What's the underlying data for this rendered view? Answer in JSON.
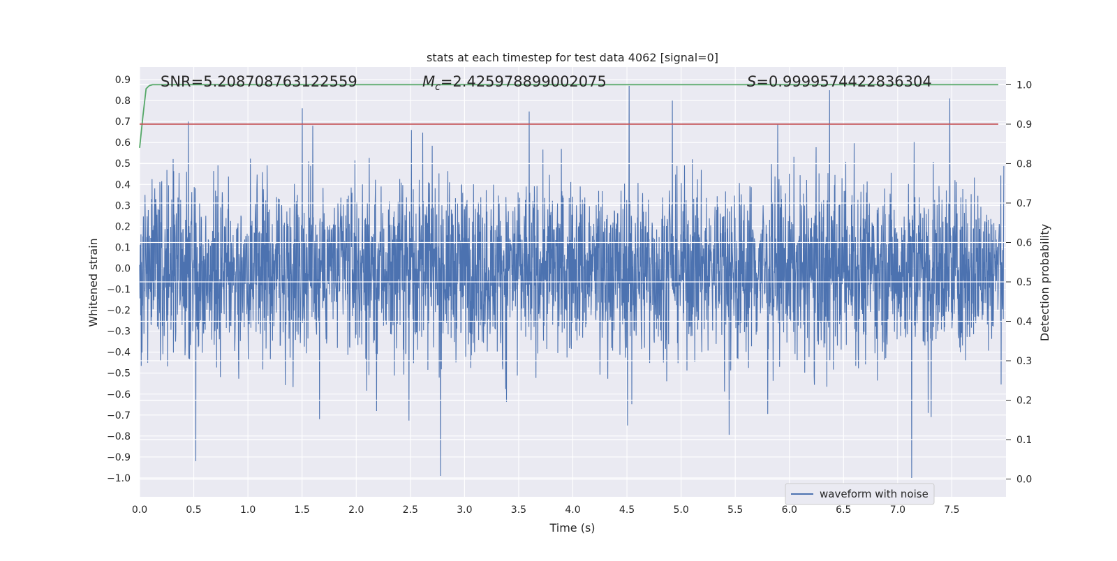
{
  "chart_data": {
    "type": "line",
    "title": "stats at each timestep for test data 4062 [signal=0]",
    "xlabel": "Time (s)",
    "ylabel": "Whitened strain",
    "y2label": "Detection probability",
    "xlim": [
      0.0,
      8.0
    ],
    "ylim": [
      -1.09,
      0.96
    ],
    "y2lim": [
      -0.045,
      1.045
    ],
    "xticks": [
      "0.0",
      "0.5",
      "1.0",
      "1.5",
      "2.0",
      "2.5",
      "3.0",
      "3.5",
      "4.0",
      "4.5",
      "5.0",
      "5.5",
      "6.0",
      "6.5",
      "7.0",
      "7.5"
    ],
    "yticks": [
      "0.9",
      "0.8",
      "0.7",
      "0.6",
      "0.5",
      "0.4",
      "0.3",
      "0.2",
      "0.1",
      "0.0",
      "−0.1",
      "−0.2",
      "−0.3",
      "−0.4",
      "−0.5",
      "−0.6",
      "−0.7",
      "−0.8",
      "−0.9",
      "−1.0"
    ],
    "y2ticks": [
      "1.0",
      "0.9",
      "0.8",
      "0.7",
      "0.6",
      "0.5",
      "0.4",
      "0.3",
      "0.2",
      "0.1",
      "0.0"
    ],
    "grid": true,
    "annotations": {
      "snr_label": "SNR=5.208708763122559",
      "mc_symbol": "M",
      "mc_subscript": "c",
      "mc_value": "=2.425978899002075",
      "s_symbol": "S",
      "s_value": "=0.9999574422836304"
    },
    "legend": {
      "placement": "lower-right",
      "entries": [
        "waveform with noise"
      ]
    },
    "series": [
      {
        "name": "waveform with noise",
        "axis": "left",
        "color": "#4c72b0",
        "description": "whitened noisy strain, band roughly -0.45 to 0.45 with spikes up to 0.88 and down to -1.0",
        "peaks": [
          [
            0.45,
            0.7
          ],
          [
            0.52,
            -0.92
          ],
          [
            1.6,
            0.68
          ],
          [
            2.78,
            -0.99
          ],
          [
            4.52,
            0.87
          ],
          [
            4.92,
            0.8
          ],
          [
            6.37,
            0.85
          ],
          [
            7.13,
            -1.0
          ],
          [
            7.48,
            0.81
          ]
        ]
      },
      {
        "name": "",
        "axis": "right",
        "color": "#55a868",
        "x": [
          0.0,
          0.03,
          0.06,
          0.09,
          0.12,
          0.5,
          8.0
        ],
        "y": [
          0.84,
          0.92,
          0.99,
          0.998,
          1.0,
          1.0,
          1.0
        ]
      },
      {
        "name": "",
        "axis": "right",
        "color": "#c44e52",
        "x": [
          0.0,
          8.0
        ],
        "y": [
          0.9,
          0.9
        ]
      }
    ]
  }
}
